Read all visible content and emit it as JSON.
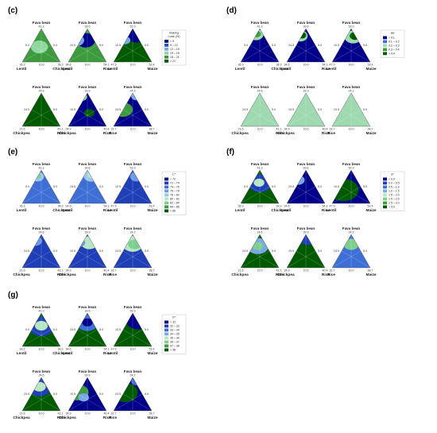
{
  "chart_data": [
    {
      "id": "c",
      "type": "ternary-contour",
      "panel_label": "(c)",
      "legend": {
        "title": [
          "Baking",
          "Loss (%)"
        ],
        "entries": [
          "< 9",
          "9 – 12",
          "12 – 15",
          "15 – 18",
          "18 – 21",
          "> 21"
        ],
        "colors": [
          "#00008b",
          "#2a4fc8",
          "#7aa7e8",
          "#8fd8a0",
          "#3c9b3c",
          "#005a00"
        ]
      },
      "triangles": [
        {
          "top": "Fava bean",
          "top_val": "41.3",
          "left": "Lentil",
          "right": "Chickpea",
          "left_val": "36.3",
          "mid_val": "10.0",
          "right_val": "38.3",
          "side_left": "5.0",
          "side_right": "5.0",
          "fill_level": 4,
          "layers": [
            [
              0.45,
              0.55,
              0.16,
              3
            ],
            [
              0.78,
              0.18,
              0.12,
              5
            ]
          ]
        },
        {
          "top": "Fava bean",
          "top_val": "39.6",
          "left": "Lentil",
          "right": "Rice",
          "left_val": "34.6",
          "mid_val": "10.0",
          "right_val": "54.1",
          "side_left": "24.5",
          "side_right": "5.0",
          "fill_level": 4,
          "layers": [
            [
              0.45,
              0.35,
              0.18,
              0
            ],
            [
              0.22,
              0.35,
              0.14,
              2
            ]
          ]
        },
        {
          "top": "Fava bean",
          "top_val": "52.9",
          "left": "Lentil",
          "right": "Maize",
          "left_val": "47.9",
          "mid_val": "10.0",
          "right_val": "53.4",
          "side_left": "10.5",
          "side_right": "5.0",
          "fill_level": 5,
          "layers": [
            [
              0.6,
              0.2,
              0.18,
              0
            ],
            [
              0.3,
              0.35,
              0.1,
              2
            ]
          ]
        },
        {
          "top": "Fava bean",
          "top_val": "24.6",
          "left": "Chickpea",
          "right": "Rice",
          "left_val": "21.6",
          "mid_val": "10.0",
          "right_val": "41.1",
          "side_left": "24.5",
          "side_right": "5.0",
          "fill_level": 5,
          "layers": []
        },
        {
          "top": "Fava bean",
          "top_val": "39.9",
          "left": "Chickpea",
          "right": "Rice",
          "left_val": "34.9",
          "mid_val": "10.0",
          "right_val": "40.4",
          "side_left": "10.5",
          "side_right": "5.0",
          "fill_level": 0,
          "layers": [
            [
              0.35,
              0.12,
              0.1,
              3
            ],
            [
              0.55,
              0.6,
              0.1,
              5
            ]
          ]
        },
        {
          "top": "Fava bean",
          "top_val": "24.2",
          "left": "Rice",
          "right": "Maize",
          "left_val": "32.7",
          "mid_val": "10.0",
          "right_val": "38.7",
          "side_left": "24.5",
          "side_right": "5.0",
          "fill_level": 0,
          "layers": [
            [
              0.25,
              0.5,
              0.18,
              4
            ],
            [
              0.6,
              0.1,
              0.1,
              2
            ]
          ]
        }
      ]
    },
    {
      "id": "d",
      "type": "ternary-contour",
      "panel_label": "(d)",
      "legend": {
        "title": [
          "aw"
        ],
        "entries": [
          "< 0.1",
          "0.1 – 0.2",
          "0.2 – 0.3",
          "0.3 – 0.4",
          "> 0.4"
        ],
        "colors": [
          "#00008b",
          "#3d6fd6",
          "#9fd9b0",
          "#3c9b3c",
          "#005a00"
        ]
      },
      "triangles": [
        {
          "top": "Fava bean",
          "top_val": "41.3",
          "left": "Lentil",
          "right": "Chickpea",
          "left_val": "36.3",
          "mid_val": "10.0",
          "right_val": "38.3",
          "side_left": "5.0",
          "side_right": "5.0",
          "fill_level": 0,
          "layers": [
            [
              0.4,
              0.18,
              0.14,
              2
            ],
            [
              0.42,
              0.16,
              0.08,
              3
            ]
          ]
        },
        {
          "top": "Fava bean",
          "top_val": "39.6",
          "left": "Lentil",
          "right": "Rice",
          "left_val": "34.6",
          "mid_val": "10.0",
          "right_val": "54.1",
          "side_left": "24.5",
          "side_right": "5.0",
          "fill_level": 0,
          "layers": [
            [
              0.35,
              0.22,
              0.14,
              2
            ],
            [
              0.4,
              0.2,
              0.08,
              4
            ]
          ]
        },
        {
          "top": "Fava bean",
          "top_val": "52.9",
          "left": "Lentil",
          "right": "Maize",
          "left_val": "47.9",
          "mid_val": "10.0",
          "right_val": "53.4",
          "side_left": "10.5",
          "side_right": "5.0",
          "fill_level": 0,
          "layers": [
            [
              0.55,
              0.25,
              0.16,
              2
            ],
            [
              0.6,
              0.22,
              0.1,
              4
            ]
          ]
        },
        {
          "top": "Fava bean",
          "top_val": "24.6",
          "left": "Chickpea",
          "right": "Rice",
          "left_val": "21.6",
          "mid_val": "10.0",
          "right_val": "41.1",
          "side_left": "24.5",
          "side_right": "5.0",
          "fill_level": 2,
          "layers": [
            [
              0.9,
              0.05,
              0.06,
              1
            ]
          ]
        },
        {
          "top": "Fava bean",
          "top_val": "39.9",
          "left": "Chickpea",
          "right": "Rice",
          "left_val": "34.9",
          "mid_val": "10.0",
          "right_val": "40.4",
          "side_left": "10.5",
          "side_right": "5.0",
          "fill_level": 2,
          "layers": [
            [
              0.9,
              0.05,
              0.06,
              1
            ]
          ]
        },
        {
          "top": "Fava bean",
          "top_val": "24.2",
          "left": "Rice",
          "right": "Maize",
          "left_val": "32.7",
          "mid_val": "10.0",
          "right_val": "38.7",
          "side_left": "24.5",
          "side_right": "5.0",
          "fill_level": 2,
          "layers": [
            [
              0.9,
              0.05,
              0.06,
              1
            ]
          ]
        }
      ]
    },
    {
      "id": "e",
      "type": "ternary-contour",
      "panel_label": "(e)",
      "legend": {
        "title": [
          "L*"
        ],
        "entries": [
          "< 72",
          "72 – 74",
          "74 – 76",
          "76 – 78",
          "78 – 80",
          "80 – 82",
          "82 – 84",
          "84 – 86",
          "> 86"
        ],
        "colors": [
          "#00008b",
          "#1f3fb8",
          "#3d6fd6",
          "#6a9ae6",
          "#9cc7ee",
          "#b8e6c2",
          "#7ccf8c",
          "#3c9b3c",
          "#005a00"
        ]
      },
      "triangles": [
        {
          "top": "Fava bean",
          "top_val": "41.3",
          "left": "Lentil",
          "right": "Chickpea",
          "left_val": "36.3",
          "mid_val": "10.0",
          "right_val": "38.3",
          "side_left": "5.0",
          "side_right": "5.0",
          "fill_level": 2,
          "layers": [
            [
              0.4,
              0.2,
              0.12,
              4
            ],
            [
              0.42,
              0.18,
              0.06,
              6
            ]
          ]
        },
        {
          "top": "Fava bean",
          "top_val": "39.6",
          "left": "Lentil",
          "right": "Rice",
          "left_val": "34.6",
          "mid_val": "10.0",
          "right_val": "54.1",
          "side_left": "24.5",
          "side_right": "5.0",
          "fill_level": 2,
          "layers": [
            [
              0.6,
              0.18,
              0.14,
              4
            ],
            [
              0.62,
              0.15,
              0.08,
              5
            ]
          ]
        },
        {
          "top": "Fava bean",
          "top_val": "52.9",
          "left": "Lentil",
          "right": "Maize",
          "left_val": "47.9",
          "mid_val": "10.0",
          "right_val": "53.4",
          "side_left": "10.5",
          "side_right": "5.0",
          "fill_level": 1,
          "layers": [
            [
              0.6,
              0.2,
              0.12,
              3
            ]
          ]
        },
        {
          "top": "Fava bean",
          "top_val": "24.6",
          "left": "Chickpea",
          "right": "Rice",
          "left_val": "21.6",
          "mid_val": "10.0",
          "right_val": "41.1",
          "side_left": "24.5",
          "side_right": "5.0",
          "fill_level": 1,
          "layers": [
            [
              0.35,
              0.2,
              0.12,
              3
            ]
          ]
        },
        {
          "top": "Fava bean",
          "top_val": "39.9",
          "left": "Chickpea",
          "right": "Rice",
          "left_val": "34.9",
          "mid_val": "10.0",
          "right_val": "40.4",
          "side_left": "10.5",
          "side_right": "5.0",
          "fill_level": 1,
          "layers": [
            [
              0.55,
              0.25,
              0.16,
              5
            ],
            [
              0.3,
              0.25,
              0.1,
              3
            ]
          ]
        },
        {
          "top": "Fava bean",
          "top_val": "24.2",
          "left": "Rice",
          "right": "Maize",
          "left_val": "32.7",
          "mid_val": "10.0",
          "right_val": "38.7",
          "side_left": "24.5",
          "side_right": "5.0",
          "fill_level": 1,
          "layers": [
            [
              0.5,
              0.28,
              0.2,
              5
            ],
            [
              0.55,
              0.3,
              0.12,
              6
            ]
          ]
        }
      ]
    },
    {
      "id": "f",
      "type": "ternary-contour",
      "panel_label": "(f)",
      "legend": {
        "title": [
          "a*"
        ],
        "entries": [
          "< 0.0",
          "0.0 – 0.5",
          "0.5 – 1.0",
          "1.0 – 1.5",
          "1.5 – 2.0",
          "2.0 – 2.5",
          "2.5 – 3.0",
          "> 3.0"
        ],
        "colors": [
          "#00008b",
          "#1f3fb8",
          "#3d6fd6",
          "#7aa7e8",
          "#b8e6c2",
          "#7ccf8c",
          "#3c9b3c",
          "#005a00"
        ]
      },
      "triangles": [
        {
          "top": "Fava bean",
          "top_val": "41.3",
          "left": "Lentil",
          "right": "Chickpea",
          "left_val": "36.3",
          "mid_val": "10.0",
          "right_val": "38.3",
          "side_left": "5.0",
          "side_right": "5.0",
          "fill_level": 7,
          "layers": [
            [
              0.5,
              0.4,
              0.22,
              1
            ],
            [
              0.48,
              0.38,
              0.1,
              4
            ]
          ]
        },
        {
          "top": "Fava bean",
          "top_val": "39.6",
          "left": "Lentil",
          "right": "Rice",
          "left_val": "34.6",
          "mid_val": "10.0",
          "right_val": "54.1",
          "side_left": "24.5",
          "side_right": "5.0",
          "fill_level": 0,
          "layers": [
            [
              0.3,
              0.3,
              0.12,
              3
            ]
          ]
        },
        {
          "top": "Fava bean",
          "top_val": "52.9",
          "left": "Lentil",
          "right": "Maize",
          "left_val": "47.9",
          "mid_val": "10.0",
          "right_val": "53.4",
          "side_left": "10.5",
          "side_right": "5.0",
          "fill_level": 0,
          "layers": [
            [
              0.3,
              0.6,
              0.28,
              7
            ]
          ]
        },
        {
          "top": "Fava bean",
          "top_val": "24.6",
          "left": "Chickpea",
          "right": "Rice",
          "left_val": "21.6",
          "mid_val": "10.0",
          "right_val": "41.1",
          "side_left": "24.5",
          "side_right": "5.0",
          "fill_level": 7,
          "layers": [
            [
              0.45,
              0.35,
              0.2,
              3
            ],
            [
              0.45,
              0.35,
              0.1,
              5
            ]
          ]
        },
        {
          "top": "Fava bean",
          "top_val": "39.9",
          "left": "Chickpea",
          "right": "Rice",
          "left_val": "34.9",
          "mid_val": "10.0",
          "right_val": "40.4",
          "side_left": "10.5",
          "side_right": "5.0",
          "fill_level": 7,
          "layers": [
            [
              0.55,
              0.15,
              0.14,
              1
            ],
            [
              0.3,
              0.15,
              0.08,
              0
            ]
          ]
        },
        {
          "top": "Fava bean",
          "top_val": "24.2",
          "left": "Rice",
          "right": "Maize",
          "left_val": "32.7",
          "mid_val": "10.0",
          "right_val": "38.7",
          "side_left": "24.5",
          "side_right": "5.0",
          "fill_level": 2,
          "layers": [
            [
              0.5,
              0.3,
              0.14,
              5
            ],
            [
              0.8,
              0.3,
              0.1,
              7
            ]
          ]
        }
      ]
    },
    {
      "id": "g",
      "type": "ternary-contour",
      "panel_label": "(g)",
      "legend": {
        "title": [
          "b*"
        ],
        "entries": [
          "< 32",
          "32 – 33",
          "33 – 34",
          "34 – 35",
          "35 – 36",
          "36 – 37",
          "37 – 38",
          "> 38"
        ],
        "colors": [
          "#00008b",
          "#1f3fb8",
          "#3d6fd6",
          "#7aa7e8",
          "#b8e6c2",
          "#7ccf8c",
          "#3c9b3c",
          "#005a00"
        ]
      },
      "triangles": [
        {
          "top": "Fava bean",
          "top_val": "41.3",
          "left": "Lentil",
          "right": "Chickpea",
          "left_val": "36.3",
          "mid_val": "10.0",
          "right_val": "38.3",
          "side_left": "5.0",
          "side_right": "5.0",
          "fill_level": 7,
          "layers": [
            [
              0.5,
              0.4,
              0.24,
              1
            ],
            [
              0.5,
              0.38,
              0.12,
              4
            ]
          ]
        },
        {
          "top": "Fava bean",
          "top_val": "39.6",
          "left": "Lentil",
          "right": "Rice",
          "left_val": "34.6",
          "mid_val": "10.0",
          "right_val": "54.1",
          "side_left": "24.5",
          "side_right": "5.0",
          "fill_level": 7,
          "layers": [
            [
              0.5,
              0.3,
              0.2,
              2
            ],
            [
              0.5,
              0.28,
              0.1,
              0
            ]
          ]
        },
        {
          "top": "Fava bean",
          "top_val": "52.9",
          "left": "Lentil",
          "right": "Maize",
          "left_val": "47.9",
          "mid_val": "10.0",
          "right_val": "53.4",
          "side_left": "10.5",
          "side_right": "5.0",
          "fill_level": 7,
          "layers": [
            [
              0.65,
              0.2,
              0.24,
              0
            ]
          ]
        },
        {
          "top": "Fava bean",
          "top_val": "24.6",
          "left": "Chickpea",
          "right": "Rice",
          "left_val": "21.6",
          "mid_val": "10.0",
          "right_val": "41.1",
          "side_left": "24.5",
          "side_right": "5.0",
          "fill_level": 7,
          "layers": [
            [
              0.45,
              0.3,
              0.22,
              1
            ],
            [
              0.45,
              0.28,
              0.12,
              4
            ]
          ]
        },
        {
          "top": "Fava bean",
          "top_val": "39.9",
          "left": "Chickpea",
          "right": "Rice",
          "left_val": "34.9",
          "mid_val": "10.0",
          "right_val": "40.4",
          "side_left": "10.5",
          "side_right": "5.0",
          "fill_level": 0,
          "layers": [
            [
              0.25,
              0.45,
              0.2,
              6
            ],
            [
              0.4,
              0.6,
              0.1,
              3
            ]
          ]
        },
        {
          "top": "Fava bean",
          "top_val": "24.2",
          "left": "Rice",
          "right": "Maize",
          "left_val": "32.7",
          "mid_val": "10.0",
          "right_val": "38.7",
          "side_left": "24.5",
          "side_right": "5.0",
          "fill_level": 0,
          "layers": [
            [
              0.3,
              0.45,
              0.24,
              7
            ],
            [
              0.6,
              0.12,
              0.1,
              2
            ]
          ]
        }
      ]
    }
  ]
}
